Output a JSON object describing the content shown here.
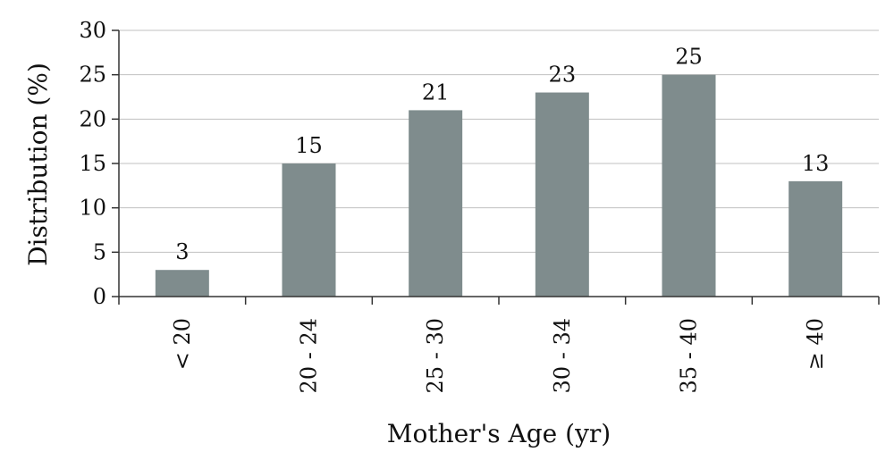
{
  "chart_data": {
    "type": "bar",
    "categories": [
      "< 20",
      "20 - 24",
      "25 - 30",
      "30 - 34",
      "35 - 40",
      "≥ 40"
    ],
    "values": [
      3,
      15,
      21,
      23,
      25,
      13
    ],
    "data_labels": [
      "3",
      "15",
      "21",
      "23",
      "25",
      "13"
    ],
    "title": "",
    "xlabel": "Mother's Age (yr)",
    "ylabel": "Distribution (%)",
    "ylim": [
      0,
      30
    ],
    "yticks": [
      0,
      5,
      10,
      15,
      20,
      25,
      30
    ],
    "ytick_labels": [
      "0",
      "5",
      "10",
      "15",
      "20",
      "25",
      "30"
    ],
    "grid": true,
    "bar_color": "#7f8c8d",
    "grid_color": "#c0c0c0",
    "axis_color": "#333333"
  }
}
